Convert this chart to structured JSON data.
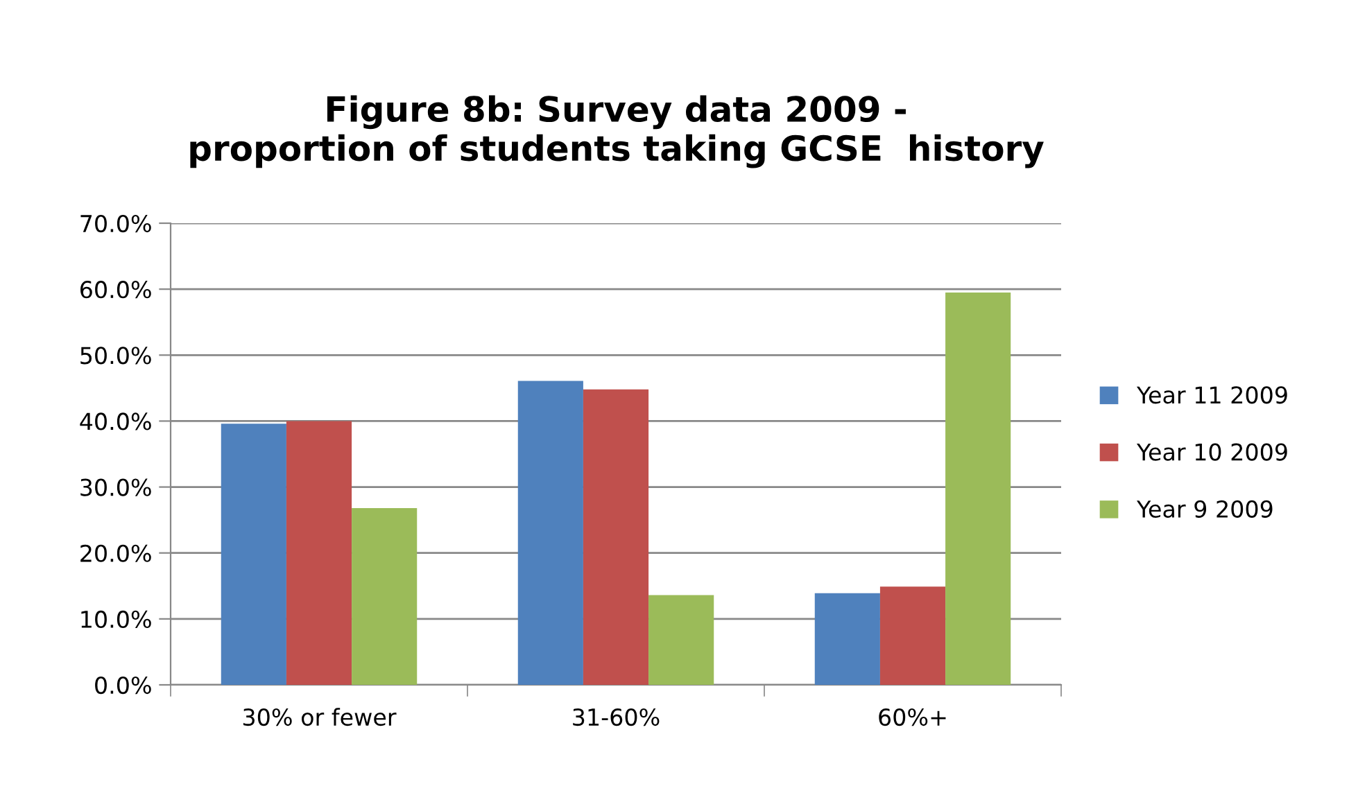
{
  "chart_data": {
    "type": "bar",
    "title": "Figure 8b: Survey data 2009 -\nproportion of students taking GCSE  history",
    "categories": [
      "30% or fewer",
      "31-60%",
      "60%+"
    ],
    "series": [
      {
        "name": "Year 11 2009",
        "color": "#4f81bd",
        "values": [
          39.6,
          46.1,
          13.9
        ]
      },
      {
        "name": "Year 10 2009",
        "color": "#c0504d",
        "values": [
          40.0,
          44.8,
          14.9
        ]
      },
      {
        "name": "Year 9 2009",
        "color": "#9bbb59",
        "values": [
          26.8,
          13.6,
          59.5
        ]
      }
    ],
    "ylim": [
      0,
      70
    ],
    "yticks": [
      {
        "value": 0,
        "label": "0.0%"
      },
      {
        "value": 10,
        "label": "10.0%"
      },
      {
        "value": 20,
        "label": "20.0%"
      },
      {
        "value": 30,
        "label": "30.0%"
      },
      {
        "value": 40,
        "label": "40.0%"
      },
      {
        "value": 50,
        "label": "50.0%"
      },
      {
        "value": 60,
        "label": "60.0%"
      },
      {
        "value": 70,
        "label": "70.0%"
      }
    ],
    "grid": "y",
    "legend": "right"
  }
}
